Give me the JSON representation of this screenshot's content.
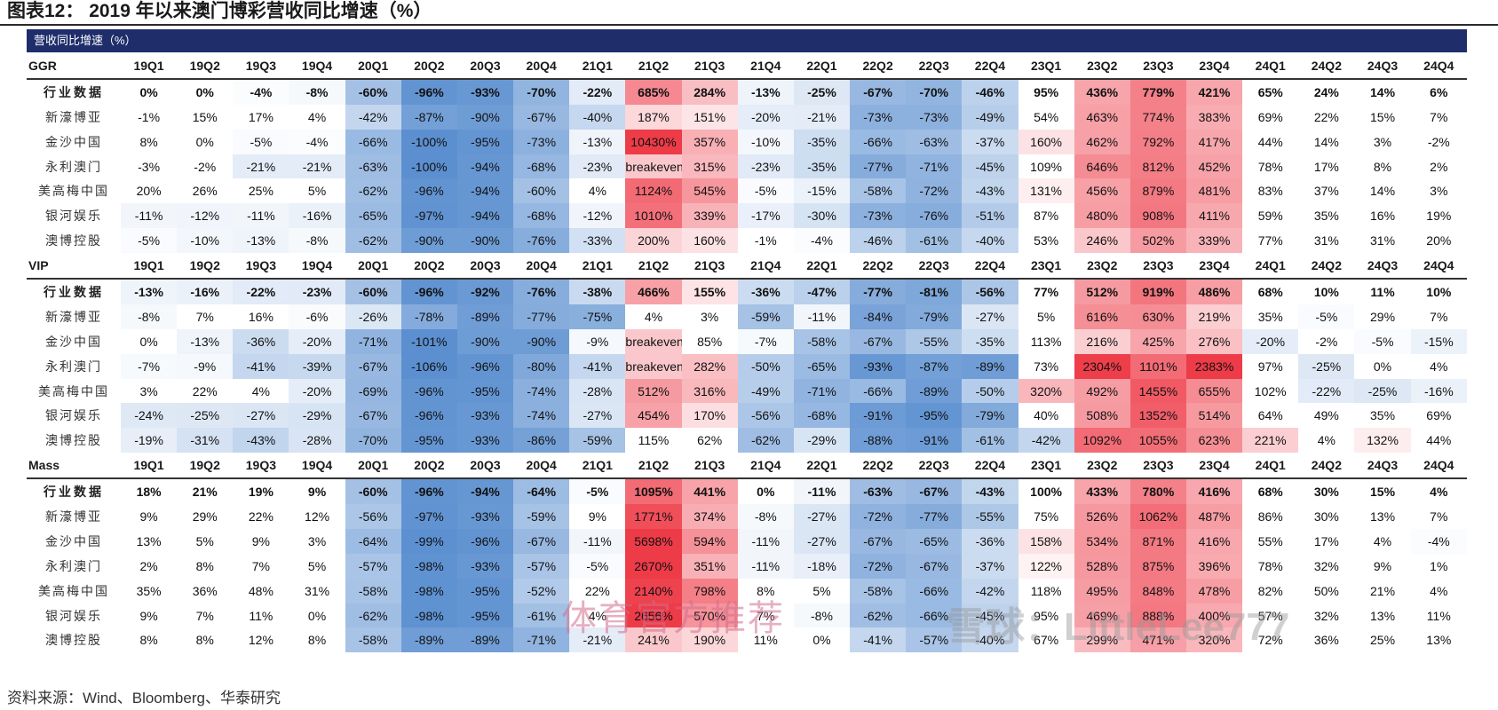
{
  "title": "图表12： 2019 年以来澳门博彩营收同比增速（%）",
  "banner": "营收同比增速（%）",
  "quarters": [
    "19Q1",
    "19Q2",
    "19Q3",
    "19Q4",
    "20Q1",
    "20Q2",
    "20Q3",
    "20Q4",
    "21Q1",
    "21Q2",
    "21Q3",
    "21Q4",
    "22Q1",
    "22Q2",
    "22Q3",
    "22Q4",
    "23Q1",
    "23Q2",
    "23Q3",
    "23Q4",
    "24Q1",
    "24Q2",
    "24Q3",
    "24Q4"
  ],
  "sections": [
    {
      "name": "GGR",
      "rows": [
        {
          "label": "行业数据",
          "values": [
            "0%",
            "0%",
            "-4%",
            "-8%",
            "-60%",
            "-96%",
            "-93%",
            "-70%",
            "-22%",
            "685%",
            "284%",
            "-13%",
            "-25%",
            "-67%",
            "-70%",
            "-46%",
            "95%",
            "436%",
            "779%",
            "421%",
            "65%",
            "24%",
            "14%",
            "6%"
          ]
        },
        {
          "label": "新濠博亚",
          "values": [
            "-1%",
            "15%",
            "17%",
            "4%",
            "-42%",
            "-87%",
            "-90%",
            "-67%",
            "-40%",
            "187%",
            "151%",
            "-20%",
            "-21%",
            "-73%",
            "-73%",
            "-49%",
            "54%",
            "463%",
            "774%",
            "383%",
            "69%",
            "22%",
            "15%",
            "7%"
          ]
        },
        {
          "label": "金沙中国",
          "values": [
            "8%",
            "0%",
            "-5%",
            "-4%",
            "-66%",
            "-100%",
            "-95%",
            "-73%",
            "-13%",
            "10430%",
            "357%",
            "-10%",
            "-35%",
            "-66%",
            "-63%",
            "-37%",
            "160%",
            "462%",
            "792%",
            "417%",
            "44%",
            "14%",
            "3%",
            "-2%"
          ]
        },
        {
          "label": "永利澳门",
          "values": [
            "-3%",
            "-2%",
            "-21%",
            "-21%",
            "-63%",
            "-100%",
            "-94%",
            "-68%",
            "-23%",
            "breakeven",
            "315%",
            "-23%",
            "-35%",
            "-77%",
            "-71%",
            "-45%",
            "109%",
            "646%",
            "812%",
            "452%",
            "78%",
            "17%",
            "8%",
            "2%"
          ]
        },
        {
          "label": "美高梅中国",
          "values": [
            "20%",
            "26%",
            "25%",
            "5%",
            "-62%",
            "-96%",
            "-94%",
            "-60%",
            "4%",
            "1124%",
            "545%",
            "-5%",
            "-15%",
            "-58%",
            "-72%",
            "-43%",
            "131%",
            "456%",
            "879%",
            "481%",
            "83%",
            "37%",
            "14%",
            "3%"
          ]
        },
        {
          "label": "银河娱乐",
          "values": [
            "-11%",
            "-12%",
            "-11%",
            "-16%",
            "-65%",
            "-97%",
            "-94%",
            "-68%",
            "-12%",
            "1010%",
            "339%",
            "-17%",
            "-30%",
            "-73%",
            "-76%",
            "-51%",
            "87%",
            "480%",
            "908%",
            "411%",
            "59%",
            "35%",
            "16%",
            "19%"
          ]
        },
        {
          "label": "澳博控股",
          "values": [
            "-5%",
            "-10%",
            "-13%",
            "-8%",
            "-62%",
            "-90%",
            "-90%",
            "-76%",
            "-33%",
            "200%",
            "160%",
            "-1%",
            "-4%",
            "-46%",
            "-61%",
            "-40%",
            "53%",
            "246%",
            "502%",
            "339%",
            "77%",
            "31%",
            "31%",
            "20%"
          ]
        }
      ]
    },
    {
      "name": "VIP",
      "rows": [
        {
          "label": "行业数据",
          "values": [
            "-13%",
            "-16%",
            "-22%",
            "-23%",
            "-60%",
            "-96%",
            "-92%",
            "-76%",
            "-38%",
            "466%",
            "155%",
            "-36%",
            "-47%",
            "-77%",
            "-81%",
            "-56%",
            "77%",
            "512%",
            "919%",
            "486%",
            "68%",
            "10%",
            "11%",
            "10%"
          ]
        },
        {
          "label": "新濠博亚",
          "values": [
            "-8%",
            "7%",
            "16%",
            "-6%",
            "-26%",
            "-78%",
            "-89%",
            "-77%",
            "-75%",
            "4%",
            "3%",
            "-59%",
            "-11%",
            "-84%",
            "-79%",
            "-27%",
            "5%",
            "616%",
            "630%",
            "219%",
            "35%",
            "-5%",
            "29%",
            "7%"
          ]
        },
        {
          "label": "金沙中国",
          "values": [
            "0%",
            "-13%",
            "-36%",
            "-20%",
            "-71%",
            "-101%",
            "-90%",
            "-90%",
            "-9%",
            "breakeven",
            "85%",
            "-7%",
            "-58%",
            "-67%",
            "-55%",
            "-35%",
            "113%",
            "216%",
            "425%",
            "276%",
            "-20%",
            "-2%",
            "-5%",
            "-15%"
          ]
        },
        {
          "label": "永利澳门",
          "values": [
            "-7%",
            "-9%",
            "-41%",
            "-39%",
            "-67%",
            "-106%",
            "-96%",
            "-80%",
            "-41%",
            "breakeven",
            "282%",
            "-50%",
            "-65%",
            "-93%",
            "-87%",
            "-89%",
            "73%",
            "2304%",
            "1101%",
            "2383%",
            "97%",
            "-25%",
            "0%",
            "4%"
          ]
        },
        {
          "label": "美高梅中国",
          "values": [
            "3%",
            "22%",
            "4%",
            "-20%",
            "-69%",
            "-96%",
            "-95%",
            "-74%",
            "-28%",
            "512%",
            "316%",
            "-49%",
            "-71%",
            "-66%",
            "-89%",
            "-50%",
            "320%",
            "492%",
            "1455%",
            "655%",
            "102%",
            "-22%",
            "-25%",
            "-16%"
          ]
        },
        {
          "label": "银河娱乐",
          "values": [
            "-24%",
            "-25%",
            "-27%",
            "-29%",
            "-67%",
            "-96%",
            "-93%",
            "-74%",
            "-27%",
            "454%",
            "170%",
            "-56%",
            "-68%",
            "-91%",
            "-95%",
            "-79%",
            "40%",
            "508%",
            "1352%",
            "514%",
            "64%",
            "49%",
            "35%",
            "69%"
          ]
        },
        {
          "label": "澳博控股",
          "values": [
            "-19%",
            "-31%",
            "-43%",
            "-28%",
            "-70%",
            "-95%",
            "-93%",
            "-86%",
            "-59%",
            "115%",
            "62%",
            "-62%",
            "-29%",
            "-88%",
            "-91%",
            "-61%",
            "-42%",
            "1092%",
            "1055%",
            "623%",
            "221%",
            "4%",
            "132%",
            "44%"
          ]
        }
      ]
    },
    {
      "name": "Mass",
      "rows": [
        {
          "label": "行业数据",
          "values": [
            "18%",
            "21%",
            "19%",
            "9%",
            "-60%",
            "-96%",
            "-94%",
            "-64%",
            "-5%",
            "1095%",
            "441%",
            "0%",
            "-11%",
            "-63%",
            "-67%",
            "-43%",
            "100%",
            "433%",
            "780%",
            "416%",
            "68%",
            "30%",
            "15%",
            "4%"
          ]
        },
        {
          "label": "新濠博亚",
          "values": [
            "9%",
            "29%",
            "22%",
            "12%",
            "-56%",
            "-97%",
            "-93%",
            "-59%",
            "9%",
            "1771%",
            "374%",
            "-8%",
            "-27%",
            "-72%",
            "-77%",
            "-55%",
            "75%",
            "526%",
            "1062%",
            "487%",
            "86%",
            "30%",
            "13%",
            "7%"
          ]
        },
        {
          "label": "金沙中国",
          "values": [
            "13%",
            "5%",
            "9%",
            "3%",
            "-64%",
            "-99%",
            "-96%",
            "-67%",
            "-11%",
            "5698%",
            "594%",
            "-11%",
            "-27%",
            "-67%",
            "-65%",
            "-36%",
            "158%",
            "534%",
            "871%",
            "416%",
            "55%",
            "17%",
            "4%",
            "-4%"
          ]
        },
        {
          "label": "永利澳门",
          "values": [
            "2%",
            "8%",
            "7%",
            "5%",
            "-57%",
            "-98%",
            "-93%",
            "-57%",
            "-5%",
            "2670%",
            "351%",
            "-11%",
            "-18%",
            "-72%",
            "-67%",
            "-37%",
            "122%",
            "528%",
            "875%",
            "396%",
            "78%",
            "32%",
            "9%",
            "1%"
          ]
        },
        {
          "label": "美高梅中国",
          "values": [
            "35%",
            "36%",
            "48%",
            "31%",
            "-58%",
            "-98%",
            "-95%",
            "-52%",
            "22%",
            "2140%",
            "798%",
            "8%",
            "5%",
            "-58%",
            "-66%",
            "-42%",
            "118%",
            "495%",
            "848%",
            "478%",
            "82%",
            "50%",
            "21%",
            "4%"
          ]
        },
        {
          "label": "银河娱乐",
          "values": [
            "9%",
            "7%",
            "11%",
            "0%",
            "-62%",
            "-98%",
            "-95%",
            "-61%",
            "4%",
            "2656%",
            "570%",
            "7%",
            "-8%",
            "-62%",
            "-66%",
            "-45%",
            "95%",
            "469%",
            "888%",
            "400%",
            "57%",
            "32%",
            "13%",
            "11%"
          ]
        },
        {
          "label": "澳博控股",
          "values": [
            "8%",
            "8%",
            "12%",
            "8%",
            "-58%",
            "-89%",
            "-89%",
            "-71%",
            "-21%",
            "241%",
            "190%",
            "11%",
            "0%",
            "-41%",
            "-57%",
            "-40%",
            "67%",
            "299%",
            "471%",
            "320%",
            "72%",
            "36%",
            "25%",
            "13%"
          ]
        }
      ]
    }
  ],
  "source": "资料来源：Wind、Bloomberg、华泰研究",
  "watermark_1": "体育官方推荐",
  "watermark_2": "雪球：LittleLee777",
  "colors": {
    "banner_bg": "#1f2d6b",
    "negative_max": "#5b8fd0",
    "positive_max": "#ee3b48",
    "neutral": "#ffffff"
  }
}
